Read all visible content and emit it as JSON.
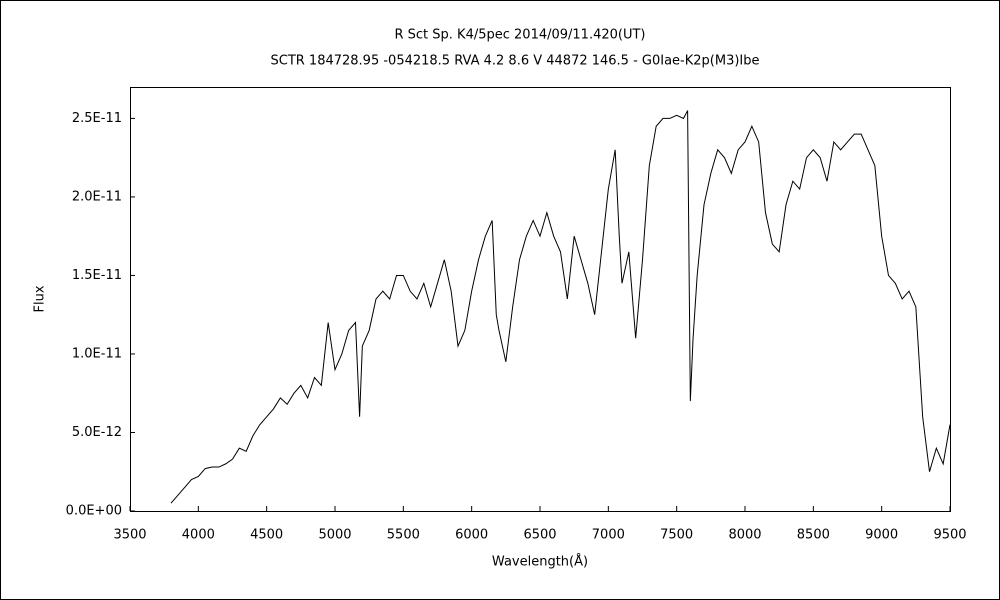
{
  "chart_data": {
    "type": "line",
    "title": "R Sct    Sp. K4/5pec    2014/09/11.420(UT)",
    "subtitle": "SCTR 184728.95 -054218.5 RVA 4.2 8.6  V 44872 146.5 - G0Iae-K2p(M3)Ibe",
    "x_label": "Wavelength(Å)",
    "y_label": "Flux",
    "xlim": [
      3500,
      9500
    ],
    "xticks": [
      3500,
      4000,
      4500,
      5000,
      5500,
      6000,
      6500,
      7000,
      7500,
      8000,
      8500,
      9000,
      9500
    ],
    "ylim": [
      0,
      2.7e-11
    ],
    "yticks": [
      {
        "value": 0,
        "label": "0.0E+00"
      },
      {
        "value": 5e-12,
        "label": "5.0E-12"
      },
      {
        "value": 1e-11,
        "label": "1.0E-11"
      },
      {
        "value": 1.5e-11,
        "label": "1.5E-11"
      },
      {
        "value": 2e-11,
        "label": "2.0E-11"
      },
      {
        "value": 2.5e-11,
        "label": "2.5E-11"
      }
    ],
    "grid": false,
    "series": [
      {
        "color": "#000000",
        "x": [
          3800,
          3850,
          3900,
          3950,
          4000,
          4050,
          4100,
          4150,
          4200,
          4250,
          4300,
          4350,
          4400,
          4450,
          4500,
          4550,
          4600,
          4650,
          4700,
          4750,
          4800,
          4850,
          4900,
          4950,
          5000,
          5050,
          5100,
          5150,
          5180,
          5200,
          5250,
          5300,
          5350,
          5400,
          5450,
          5500,
          5550,
          5600,
          5650,
          5700,
          5750,
          5800,
          5850,
          5900,
          5950,
          6000,
          6050,
          6100,
          6150,
          6180,
          6200,
          6250,
          6300,
          6350,
          6400,
          6450,
          6500,
          6550,
          6600,
          6650,
          6700,
          6750,
          6800,
          6850,
          6900,
          6950,
          7000,
          7050,
          7080,
          7100,
          7150,
          7200,
          7250,
          7300,
          7350,
          7400,
          7450,
          7500,
          7550,
          7580,
          7600,
          7620,
          7650,
          7700,
          7750,
          7800,
          7850,
          7900,
          7950,
          8000,
          8050,
          8100,
          8150,
          8200,
          8250,
          8300,
          8350,
          8400,
          8450,
          8500,
          8550,
          8600,
          8650,
          8700,
          8750,
          8800,
          8850,
          8900,
          8950,
          9000,
          9050,
          9100,
          9150,
          9200,
          9250,
          9300,
          9350,
          9400,
          9450,
          9500
        ],
        "values": [
          5e-13,
          1e-12,
          1.5e-12,
          2e-12,
          2.2e-12,
          2.7e-12,
          2.8e-12,
          2.8e-12,
          3e-12,
          3.3e-12,
          4e-12,
          3.8e-12,
          4.8e-12,
          5.5e-12,
          6e-12,
          6.5e-12,
          7.2e-12,
          6.8e-12,
          7.5e-12,
          8e-12,
          7.2e-12,
          8.5e-12,
          8e-12,
          1.2e-11,
          9e-12,
          1e-11,
          1.15e-11,
          1.2e-11,
          6e-12,
          1.05e-11,
          1.15e-11,
          1.35e-11,
          1.4e-11,
          1.35e-11,
          1.5e-11,
          1.5e-11,
          1.4e-11,
          1.35e-11,
          1.45e-11,
          1.3e-11,
          1.45e-11,
          1.6e-11,
          1.4e-11,
          1.05e-11,
          1.15e-11,
          1.4e-11,
          1.6e-11,
          1.75e-11,
          1.85e-11,
          1.25e-11,
          1.15e-11,
          9.5e-12,
          1.3e-11,
          1.6e-11,
          1.75e-11,
          1.85e-11,
          1.75e-11,
          1.9e-11,
          1.75e-11,
          1.65e-11,
          1.35e-11,
          1.75e-11,
          1.6e-11,
          1.45e-11,
          1.25e-11,
          1.65e-11,
          2.05e-11,
          2.3e-11,
          1.75e-11,
          1.45e-11,
          1.65e-11,
          1.1e-11,
          1.6e-11,
          2.2e-11,
          2.45e-11,
          2.5e-11,
          2.5e-11,
          2.52e-11,
          2.5e-11,
          2.55e-11,
          7e-12,
          1.1e-11,
          1.5e-11,
          1.95e-11,
          2.15e-11,
          2.3e-11,
          2.25e-11,
          2.15e-11,
          2.3e-11,
          2.35e-11,
          2.45e-11,
          2.35e-11,
          1.9e-11,
          1.7e-11,
          1.65e-11,
          1.95e-11,
          2.1e-11,
          2.05e-11,
          2.25e-11,
          2.3e-11,
          2.25e-11,
          2.1e-11,
          2.35e-11,
          2.3e-11,
          2.35e-11,
          2.4e-11,
          2.4e-11,
          2.3e-11,
          2.2e-11,
          1.75e-11,
          1.5e-11,
          1.45e-11,
          1.35e-11,
          1.4e-11,
          1.3e-11,
          6e-12,
          2.5e-12,
          4e-12,
          3e-12,
          5.5e-12
        ]
      }
    ]
  }
}
